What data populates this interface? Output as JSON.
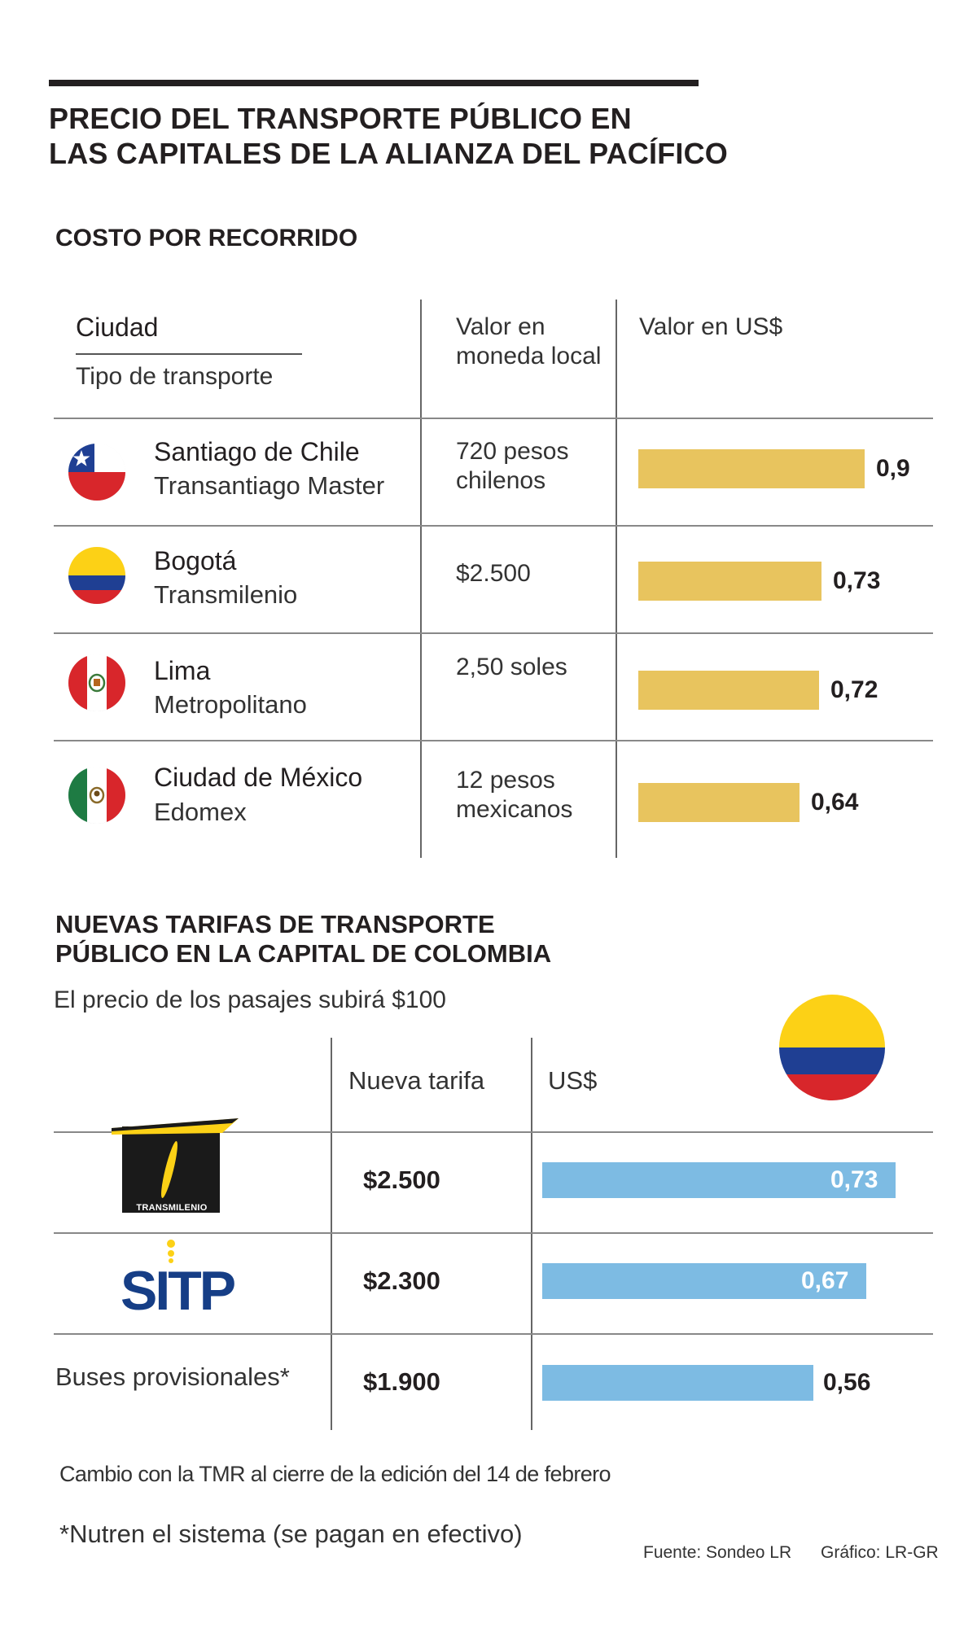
{
  "title": {
    "line1": "PRECIO DEL TRANSPORTE PÚBLICO EN",
    "line2": "LAS CAPITALES DE LA ALIANZA DEL PACÍFICO"
  },
  "section1": {
    "title": "COSTO POR RECORRIDO",
    "headers": {
      "city": "Ciudad",
      "type": "Tipo de transporte",
      "local": "Valor en moneda local",
      "usd": "Valor en US$"
    },
    "rows": [
      {
        "city": "Santiago de Chile",
        "type": "Transantiago Master",
        "local": "720 pesos chilenos",
        "usd": "0,9",
        "flag": "chile-flag"
      },
      {
        "city": "Bogotá",
        "type": "Transmilenio",
        "local": "$2.500",
        "usd": "0,73",
        "flag": "colombia-flag"
      },
      {
        "city": "Lima",
        "type": "Metropolitano",
        "local": "2,50 soles",
        "usd": "0,72",
        "flag": "peru-flag"
      },
      {
        "city": "Ciudad de México",
        "type": "Edomex",
        "local": "12 pesos mexicanos",
        "usd": "0,64",
        "flag": "mexico-flag"
      }
    ]
  },
  "section2": {
    "title_line1": "NUEVAS TARIFAS DE TRANSPORTE",
    "title_line2": "PÚBLICO EN LA CAPITAL DE COLOMBIA",
    "subtitle": "El precio de los pasajes subirá $100",
    "headers": {
      "fare": "Nueva tarifa",
      "usd": "US$"
    },
    "rows": [
      {
        "name": "TRANSMILENIO",
        "fare": "$2.500",
        "usd": "0,73"
      },
      {
        "name": "SITP",
        "fare": "$2.300",
        "usd": "0,67"
      },
      {
        "name": "Buses provisionales*",
        "fare": "$1.900",
        "usd": "0,56"
      }
    ]
  },
  "notes": {
    "exchange": "Cambio con la TMR al cierre de la edición del 14 de febrero",
    "footnote": "*Nutren el sistema (se pagan en efectivo)",
    "source": "Fuente: Sondeo LR",
    "graphic": "Gráfico: LR-GR"
  },
  "colors": {
    "bar_gold": "#e8c45e",
    "bar_blue": "#7dbbe3",
    "text": "#231f20"
  },
  "chart_data": [
    {
      "type": "bar",
      "title": "COSTO POR RECORRIDO",
      "categories": [
        "Santiago de Chile",
        "Bogotá",
        "Lima",
        "Ciudad de México"
      ],
      "values": [
        0.9,
        0.73,
        0.72,
        0.64
      ],
      "xlabel": "Valor en US$",
      "ylabel": "",
      "orientation": "horizontal",
      "xlim": [
        0,
        0.9
      ]
    },
    {
      "type": "bar",
      "title": "NUEVAS TARIFAS DE TRANSPORTE PÚBLICO EN LA CAPITAL DE COLOMBIA",
      "categories": [
        "Transmilenio",
        "SITP",
        "Buses provisionales*"
      ],
      "values": [
        0.73,
        0.67,
        0.56
      ],
      "xlabel": "US$",
      "ylabel": "",
      "orientation": "horizontal",
      "xlim": [
        0,
        0.73
      ]
    }
  ]
}
